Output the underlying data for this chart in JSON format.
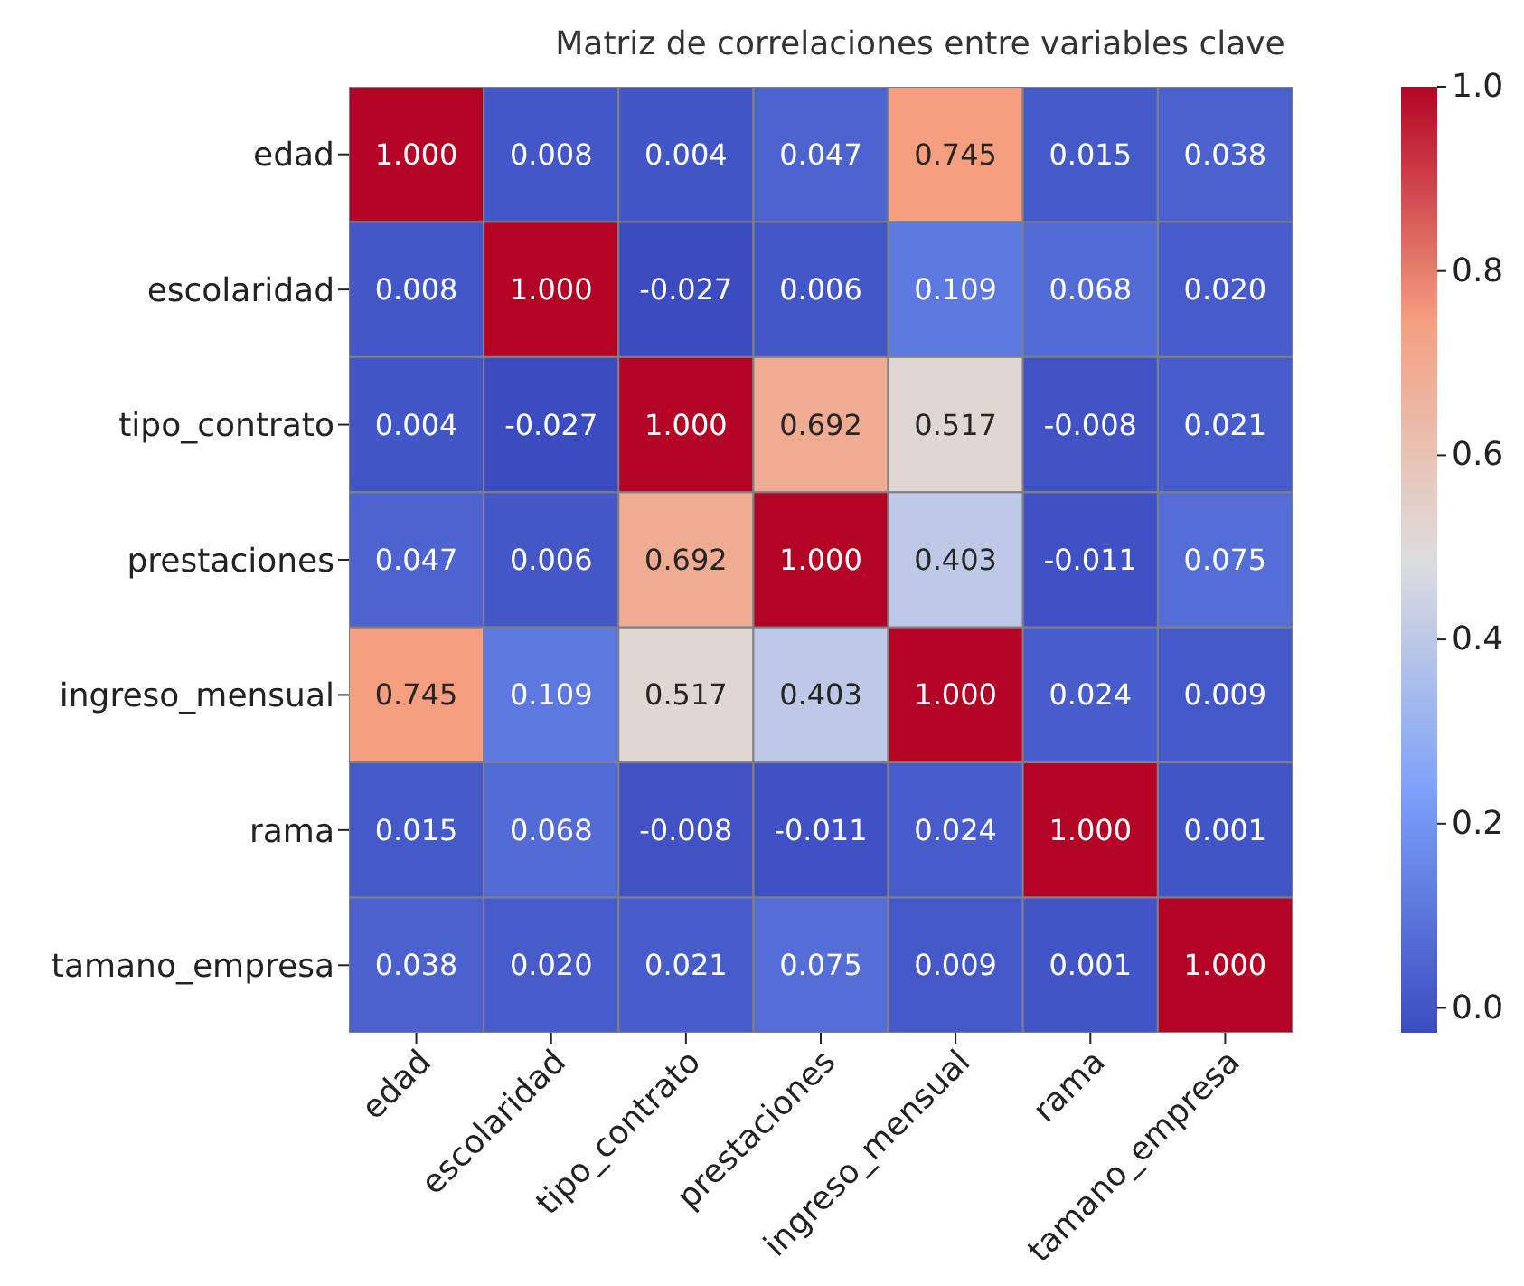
{
  "chart_data": {
    "type": "heatmap",
    "title": "Matriz de correlaciones entre variables clave",
    "categories": [
      "edad",
      "escolaridad",
      "tipo_contrato",
      "prestaciones",
      "ingreso_mensual",
      "rama",
      "tamano_empresa"
    ],
    "y_categories": [
      "edad",
      "escolaridad",
      "tipo_contrato",
      "prestaciones",
      "ingreso_mensual",
      "rama",
      "tamano_empresa"
    ],
    "cells": [
      [
        1.0,
        0.008,
        0.004,
        0.047,
        0.745,
        0.015,
        0.038
      ],
      [
        0.008,
        1.0,
        -0.027,
        0.006,
        0.109,
        0.068,
        0.02
      ],
      [
        0.004,
        -0.027,
        1.0,
        0.692,
        0.517,
        -0.008,
        0.021
      ],
      [
        0.047,
        0.006,
        0.692,
        1.0,
        0.403,
        -0.011,
        0.075
      ],
      [
        0.745,
        0.109,
        0.517,
        0.403,
        1.0,
        0.024,
        0.009
      ],
      [
        0.015,
        0.068,
        -0.008,
        -0.011,
        0.024,
        1.0,
        0.001
      ],
      [
        0.038,
        0.02,
        0.021,
        0.075,
        0.009,
        0.001,
        1.0
      ]
    ],
    "cell_labels": [
      [
        "1.000",
        "0.008",
        "0.004",
        "0.047",
        "0.745",
        "0.015",
        "0.038"
      ],
      [
        "0.008",
        "1.000",
        "-0.027",
        "0.006",
        "0.109",
        "0.068",
        "0.020"
      ],
      [
        "0.004",
        "-0.027",
        "1.000",
        "0.692",
        "0.517",
        "-0.008",
        "0.021"
      ],
      [
        "0.047",
        "0.006",
        "0.692",
        "1.000",
        "0.403",
        "-0.011",
        "0.075"
      ],
      [
        "0.745",
        "0.109",
        "0.517",
        "0.403",
        "1.000",
        "0.024",
        "0.009"
      ],
      [
        "0.015",
        "0.068",
        "-0.008",
        "-0.011",
        "0.024",
        "1.000",
        "0.001"
      ],
      [
        "0.038",
        "0.020",
        "0.021",
        "0.075",
        "0.009",
        "0.001",
        "1.000"
      ]
    ],
    "data_labels": true,
    "clim": [
      -0.027,
      1.0
    ],
    "cticks": [
      {
        "value": 0,
        "label": "0.0"
      },
      {
        "value": 0.2,
        "label": "0.2"
      },
      {
        "value": 0.4,
        "label": "0.4"
      },
      {
        "value": 0.6,
        "label": "0.6"
      },
      {
        "value": 0.8,
        "label": "0.8"
      },
      {
        "value": 1.0,
        "label": "1.0"
      }
    ]
  }
}
